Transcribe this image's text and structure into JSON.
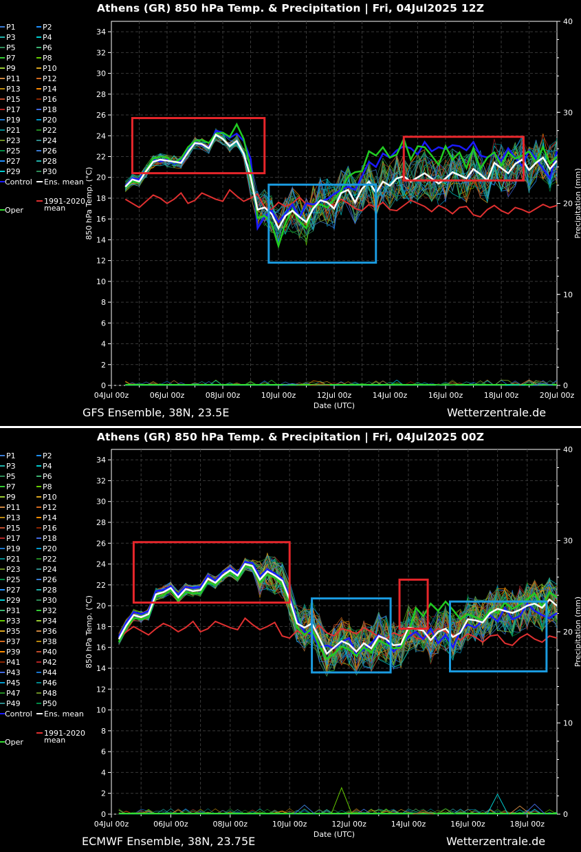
{
  "panels": [
    {
      "title": "Athens  (GR)  850 hPa Temp. & Precipitation | Fri, 04Jul2025 12Z",
      "model_label": "GFS Ensemble, 38N, 23.5E",
      "site_label": "Wetterzentrale.de",
      "legend_members": [
        "P1",
        "P2",
        "P3",
        "P4",
        "P5",
        "P6",
        "P7",
        "P8",
        "P9",
        "P10",
        "P11",
        "P12",
        "P13",
        "P14",
        "P15",
        "P16",
        "P17",
        "P18",
        "P19",
        "P20",
        "P21",
        "P22",
        "P23",
        "P24",
        "P25",
        "P26",
        "P27",
        "P28",
        "P29",
        "P30"
      ],
      "legend_control": "Control",
      "legend_mean": "Ens. mean",
      "legend_clim": "1991-2020",
      "legend_clim2": "mean",
      "legend_oper": "Oper"
    },
    {
      "title": "Athens  (GR)  850 hPa Temp. & Precipitation | Fri, 04Jul2025 00Z",
      "model_label": "ECMWF Ensemble, 38N, 23.75E",
      "site_label": "Wetterzentrale.de",
      "legend_members": [
        "P1",
        "P2",
        "P3",
        "P4",
        "P5",
        "P6",
        "P7",
        "P8",
        "P9",
        "P10",
        "P11",
        "P12",
        "P13",
        "P14",
        "P15",
        "P16",
        "P17",
        "P18",
        "P19",
        "P20",
        "P21",
        "P22",
        "P23",
        "P24",
        "P25",
        "P26",
        "P27",
        "P28",
        "P29",
        "P30",
        "P31",
        "P32",
        "P33",
        "P34",
        "P35",
        "P36",
        "P37",
        "P38",
        "P39",
        "P40",
        "P41",
        "P42",
        "P43",
        "P44",
        "P45",
        "P46",
        "P47",
        "P48",
        "P49",
        "P50"
      ],
      "legend_control": "Control",
      "legend_mean": "Ens. mean",
      "legend_clim": "1991-2020",
      "legend_clim2": "mean",
      "legend_oper": "Oper"
    }
  ],
  "chart_data": [
    {
      "type": "line",
      "title": "Athens  (GR)  850 hPa Temp. & Precipitation | Fri, 04Jul2025 12Z",
      "xlabel": "Date (UTC)",
      "ylabel": "850 hPa Temp. (°C)",
      "y2label": "Precipitation (mm)",
      "ylim": [
        0,
        35
      ],
      "y2lim": [
        0,
        40
      ],
      "yticks": [
        0,
        2,
        4,
        6,
        8,
        10,
        12,
        14,
        16,
        18,
        20,
        22,
        24,
        26,
        28,
        30,
        32,
        34
      ],
      "y2ticks": [
        0,
        10,
        20,
        30,
        40
      ],
      "xticks": [
        "04Jul 00z",
        "06Jul 00z",
        "08Jul 00z",
        "10Jul 00z",
        "12Jul 00z",
        "14Jul 00z",
        "16Jul 00z",
        "18Jul 00z",
        "20Jul 00z"
      ],
      "xlim_days": [
        0,
        16
      ],
      "grid": true,
      "legend_placement": "left",
      "x_days": [
        0.5,
        0.75,
        1,
        1.25,
        1.5,
        1.75,
        2,
        2.25,
        2.5,
        2.75,
        3,
        3.25,
        3.5,
        3.75,
        4,
        4.25,
        4.5,
        4.75,
        5,
        5.25,
        5.5,
        5.75,
        6,
        6.25,
        6.5,
        6.75,
        7,
        7.25,
        7.5,
        7.75,
        8,
        8.25,
        8.5,
        8.75,
        9,
        9.25,
        9.5,
        9.75,
        10,
        10.25,
        10.5,
        10.75,
        11,
        11.25,
        11.5,
        11.75,
        12,
        12.25,
        12.5,
        12.75,
        13,
        13.25,
        13.5,
        13.75,
        14,
        14.25,
        14.5,
        14.75,
        15,
        15.25,
        15.5,
        15.75,
        16
      ],
      "ens_mean": [
        19.1,
        19.8,
        19.6,
        20.6,
        21.5,
        21.7,
        21.6,
        21.5,
        21.4,
        22.4,
        23.3,
        23.2,
        22.8,
        24.1,
        23.7,
        23.0,
        23.5,
        22.3,
        20.0,
        16.9,
        17.1,
        16.5,
        15.1,
        16.3,
        16.8,
        16.2,
        15.7,
        17.0,
        17.8,
        17.6,
        17.0,
        18.5,
        18.8,
        17.6,
        18.9,
        19.6,
        18.5,
        19.6,
        19.2,
        19.9,
        20.1,
        19.6,
        20.0,
        20.4,
        19.9,
        19.4,
        19.9,
        20.5,
        20.2,
        19.9,
        20.8,
        20.3,
        19.7,
        21.4,
        20.9,
        20.4,
        21.3,
        21.7,
        20.7,
        21.4,
        21.9,
        20.8,
        21.6
      ],
      "control": [
        19.2,
        19.9,
        19.8,
        20.9,
        21.7,
        21.5,
        21.7,
        21.3,
        21.6,
        22.8,
        23.4,
        23.1,
        22.9,
        24.5,
        24.3,
        23.8,
        24.2,
        23.5,
        21.8,
        15.1,
        16.2,
        16.8,
        15.7,
        16.5,
        17.4,
        16.1,
        17.5,
        17.4,
        17.7,
        17.9,
        18.4,
        18.8,
        19.1,
        18.8,
        20.1,
        21.5,
        21.0,
        22.3,
        21.9,
        22.6,
        23.0,
        22.8,
        22.2,
        23.4,
        22.5,
        22.9,
        22.7,
        23.1,
        23.0,
        22.6,
        23.4,
        22.1,
        21.9,
        22.3,
        21.6,
        22.8,
        21.9,
        21.1,
        22.6,
        21.8,
        20.8,
        19.9,
        22.5
      ],
      "oper": [
        19.0,
        19.6,
        19.5,
        20.8,
        21.8,
        22.0,
        21.9,
        21.4,
        21.8,
        22.9,
        23.5,
        23.6,
        23.3,
        24.2,
        24.3,
        23.9,
        25.1,
        23.7,
        20.8,
        16.1,
        16.3,
        15.6,
        13.4,
        15.6,
        16.9,
        15.8,
        15.1,
        17.2,
        17.4,
        17.1,
        17.9,
        18.7,
        20.1,
        20.5,
        20.6,
        22.5,
        22.1,
        22.9,
        21.9,
        22.2,
        23.7,
        21.7,
        23.0,
        22.9,
        22.1,
        21.2,
        23.0,
        21.7,
        22.4,
        20.9,
        22.8,
        20.8,
        21.9,
        22.4,
        21.1,
        22.4,
        21.8,
        22.1,
        22.5,
        21.4,
        22.9,
        21.3,
        22.0
      ],
      "climate_mean": [
        17.9,
        17.5,
        17.1,
        17.7,
        18.3,
        18.0,
        17.5,
        17.9,
        18.5,
        17.5,
        17.8,
        18.5,
        18.2,
        17.9,
        17.7,
        18.8,
        18.2,
        17.7,
        18.0,
        18.4,
        17.1,
        16.9,
        17.6,
        17.2,
        17.5,
        18.1,
        17.4,
        17.1,
        17.8,
        17.6,
        17.3,
        17.9,
        17.5,
        17.0,
        16.8,
        17.4,
        17.1,
        17.6,
        16.9,
        16.8,
        17.3,
        17.8,
        17.5,
        17.2,
        16.7,
        17.3,
        17.0,
        16.5,
        17.1,
        17.2,
        16.4,
        16.2,
        16.9,
        17.3,
        16.8,
        16.5,
        17.1,
        16.9,
        16.6,
        17.0,
        17.4,
        17.1,
        17.3
      ],
      "precip_x_days": [
        6.5,
        7,
        7.5,
        12.0,
        14.5,
        15.0,
        15.5
      ],
      "precip_mm": [
        0.2,
        0.1,
        0.1,
        0.2,
        0.1,
        0.6,
        0.2
      ],
      "highlight_boxes_days_degC": [
        [
          0.75,
          20.4,
          5.5,
          25.7
        ],
        [
          5.65,
          11.8,
          9.5,
          19.3
        ],
        [
          10.5,
          19.7,
          14.8,
          23.9
        ]
      ]
    },
    {
      "type": "line",
      "title": "Athens  (GR)  850 hPa Temp. & Precipitation | Fri, 04Jul2025 00Z",
      "xlabel": "Date (UTC)",
      "ylabel": "850 hPa Temp. (°C)",
      "y2label": "Precipitation (mm)",
      "ylim": [
        0,
        35
      ],
      "y2lim": [
        0,
        40
      ],
      "yticks": [
        0,
        2,
        4,
        6,
        8,
        10,
        12,
        14,
        16,
        18,
        20,
        22,
        24,
        26,
        28,
        30,
        32,
        34
      ],
      "y2ticks": [
        0,
        10,
        20,
        30,
        40
      ],
      "xticks": [
        "04Jul 00z",
        "06Jul 00z",
        "08Jul 00z",
        "10Jul 00z",
        "12Jul 00z",
        "14Jul 00z",
        "16Jul 00z",
        "18Jul 00z"
      ],
      "xlim_days": [
        0,
        15
      ],
      "grid": true,
      "legend_placement": "left",
      "x_days": [
        0.25,
        0.5,
        0.75,
        1,
        1.25,
        1.5,
        1.75,
        2,
        2.25,
        2.5,
        2.75,
        3,
        3.25,
        3.5,
        3.75,
        4,
        4.25,
        4.5,
        4.75,
        5,
        5.25,
        5.5,
        5.75,
        6,
        6.25,
        6.5,
        6.75,
        7,
        7.25,
        7.5,
        7.75,
        8,
        8.25,
        8.5,
        8.75,
        9,
        9.25,
        9.5,
        9.75,
        10,
        10.25,
        10.5,
        10.75,
        11,
        11.25,
        11.5,
        11.75,
        12,
        12.25,
        12.5,
        12.75,
        13,
        13.25,
        13.5,
        13.75,
        14,
        14.25,
        14.5,
        14.75,
        15
      ],
      "ens_mean": [
        16.8,
        18.1,
        19.1,
        18.9,
        19.2,
        21.1,
        21.3,
        21.7,
        20.8,
        21.6,
        21.4,
        21.5,
        22.6,
        22.2,
        22.9,
        23.4,
        22.9,
        24.0,
        23.8,
        22.5,
        23.3,
        22.9,
        22.4,
        20.6,
        18.3,
        17.9,
        18.3,
        16.9,
        15.4,
        16.0,
        16.6,
        16.3,
        15.6,
        16.4,
        15.9,
        17.1,
        16.8,
        16.2,
        16.3,
        17.9,
        17.8,
        17.6,
        16.7,
        17.5,
        17.8,
        17.0,
        17.4,
        18.7,
        18.6,
        18.4,
        19.3,
        19.7,
        19.5,
        19.3,
        19.6,
        20.0,
        20.2,
        19.8,
        20.6,
        20.0
      ],
      "control": [
        17.0,
        18.4,
        19.4,
        19.2,
        19.5,
        21.4,
        21.5,
        21.9,
        21.0,
        21.8,
        21.7,
        21.8,
        22.9,
        22.4,
        23.2,
        23.6,
        23.1,
        24.2,
        24.1,
        22.8,
        23.5,
        23.1,
        22.6,
        20.9,
        18.6,
        17.5,
        17.3,
        16.0,
        16.2,
        15.9,
        16.5,
        16.9,
        15.3,
        15.8,
        16.4,
        17.2,
        16.8,
        15.6,
        16.3,
        17.0,
        17.5,
        16.8,
        17.8,
        16.4,
        17.2,
        16.0,
        17.6,
        18.2,
        17.9,
        18.6,
        19.1,
        18.5,
        19.8,
        18.7,
        19.0,
        20.2,
        19.5,
        19.1,
        18.8,
        19.3
      ],
      "oper": [
        16.5,
        17.9,
        18.8,
        18.7,
        18.9,
        20.9,
        21.0,
        21.5,
        20.5,
        21.3,
        21.2,
        21.2,
        22.3,
        22.0,
        22.7,
        23.2,
        22.6,
        23.8,
        23.6,
        22.2,
        23.0,
        22.7,
        22.1,
        20.3,
        17.9,
        17.2,
        17.8,
        16.1,
        14.9,
        15.4,
        16.1,
        15.8,
        15.2,
        16.0,
        15.5,
        16.7,
        16.3,
        15.9,
        16.0,
        17.4,
        19.8,
        19.0,
        20.2,
        19.5,
        20.4,
        19.6,
        18.7,
        19.2,
        18.9,
        18.6,
        19.6,
        19.3,
        20.3,
        19.7,
        20.1,
        20.6,
        21.2,
        19.9,
        21.3,
        20.8
      ],
      "climate_mean": [
        16.8,
        17.5,
        18.0,
        17.6,
        17.2,
        17.8,
        18.3,
        18.0,
        17.5,
        17.9,
        18.5,
        17.5,
        17.8,
        18.5,
        18.2,
        17.9,
        17.7,
        18.8,
        18.2,
        17.7,
        18.0,
        18.4,
        17.1,
        16.9,
        17.6,
        17.2,
        17.5,
        18.1,
        17.4,
        17.1,
        17.8,
        17.6,
        17.3,
        17.9,
        17.5,
        17.0,
        16.8,
        17.4,
        17.1,
        17.6,
        16.9,
        16.8,
        17.3,
        17.8,
        17.5,
        17.2,
        16.7,
        17.3,
        17.0,
        16.5,
        17.1,
        17.2,
        16.4,
        16.2,
        16.9,
        17.3,
        16.8,
        16.5,
        17.1,
        16.9
      ],
      "precip_x_days": [
        6.5,
        7.75,
        10.5,
        11.25,
        13.0,
        13.75,
        14.25
      ],
      "precip_mm": [
        1.0,
        2.9,
        0.2,
        0.6,
        2.2,
        0.9,
        1.1
      ],
      "highlight_boxes_days_degC": [
        [
          0.75,
          20.3,
          6.0,
          26.1
        ],
        [
          6.75,
          13.6,
          9.4,
          20.7
        ],
        [
          9.7,
          17.8,
          10.65,
          22.5
        ],
        [
          11.4,
          13.7,
          14.65,
          20.4
        ]
      ]
    }
  ]
}
